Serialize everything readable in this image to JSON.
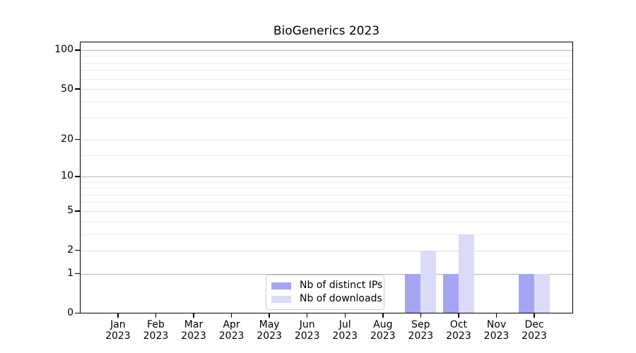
{
  "chart_data": {
    "type": "bar",
    "title": "BioGenerics 2023",
    "x": {
      "months": [
        "Jan",
        "Feb",
        "Mar",
        "Apr",
        "May",
        "Jun",
        "Jul",
        "Aug",
        "Sep",
        "Oct",
        "Nov",
        "Dec"
      ],
      "year": "2023"
    },
    "series": [
      {
        "name": "Nb of distinct IPs",
        "color": "#a5a5f2",
        "values": [
          0,
          0,
          0,
          0,
          0,
          0,
          0,
          0,
          1,
          1,
          0,
          1
        ]
      },
      {
        "name": "Nb of downloads",
        "color": "#dbdbf8",
        "values": [
          0,
          0,
          0,
          0,
          0,
          0,
          0,
          0,
          2,
          3,
          0,
          1
        ]
      }
    ],
    "y_axis": {
      "scale": "log1p",
      "tick_labels": [
        0,
        1,
        2,
        5,
        10,
        20,
        50,
        100
      ],
      "minor_gridlines": [
        3,
        4,
        6,
        7,
        8,
        9,
        15,
        30,
        40,
        60,
        70,
        80,
        90
      ],
      "emphasized_gridlines": [
        1,
        10,
        100
      ],
      "ylim": [
        0,
        116
      ]
    },
    "legend": {
      "position": "lower center",
      "entries": [
        "Nb of distinct IPs",
        "Nb of downloads"
      ]
    },
    "grid": "horizontal"
  }
}
